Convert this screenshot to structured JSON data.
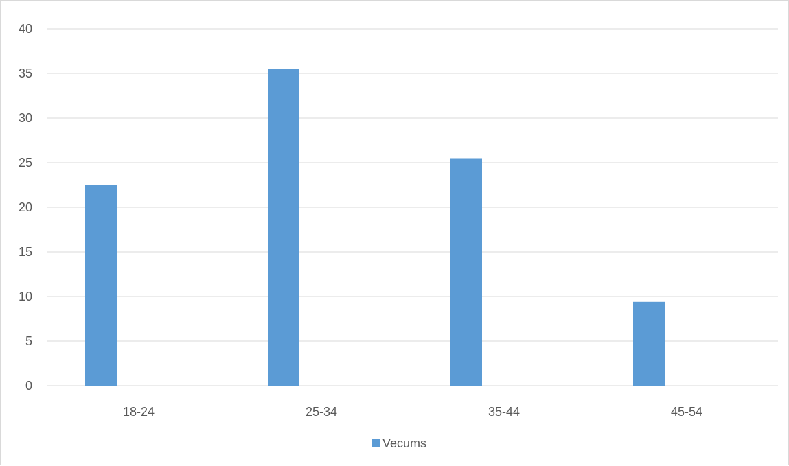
{
  "chart_data": {
    "type": "bar",
    "categories": [
      "18-24",
      "25-34",
      "35-44",
      "45-54"
    ],
    "series": [
      {
        "name": "Vecums",
        "values": [
          22.5,
          35.5,
          25.5,
          9.4
        ]
      },
      {
        "values": [
          0,
          0,
          0,
          0
        ]
      }
    ],
    "ylim": [
      0,
      40
    ],
    "yticks": [
      "0",
      "5",
      "10",
      "15",
      "20",
      "25",
      "30",
      "35",
      "40"
    ],
    "grid": true,
    "legend_position": "bottom",
    "colors": {
      "bar": "#5B9BD5",
      "grid": "#d9d9d9",
      "text": "#595959"
    }
  }
}
